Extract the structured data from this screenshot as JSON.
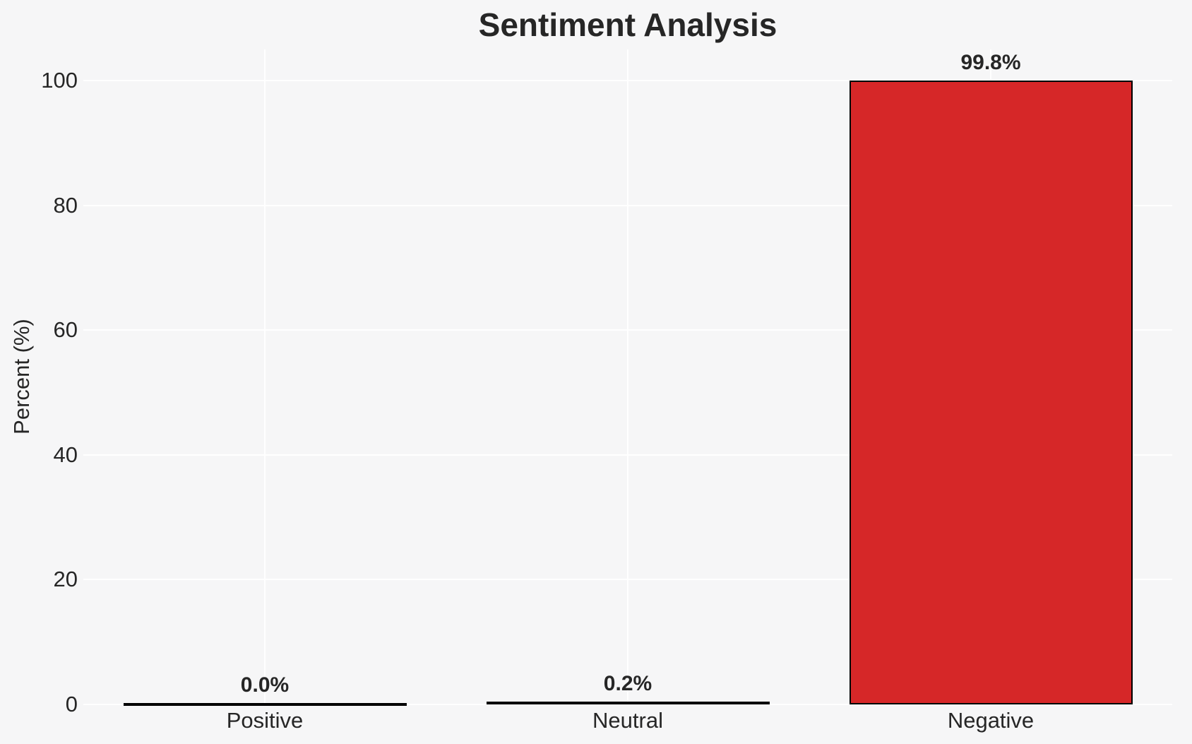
{
  "figure": {
    "background_color": "#f6f6f7",
    "gridline_color": "#ffffff",
    "text_color": "#262626"
  },
  "chart_data": {
    "type": "bar",
    "title": "Sentiment Analysis",
    "xlabel": "",
    "ylabel": "Percent (%)",
    "categories": [
      "Positive",
      "Neutral",
      "Negative"
    ],
    "values": [
      0.0,
      0.2,
      99.8
    ],
    "value_labels": [
      "0.0%",
      "0.2%",
      "99.8%"
    ],
    "yticks": [
      0,
      20,
      40,
      60,
      80,
      100
    ],
    "ylim": [
      0,
      105
    ],
    "grid": true,
    "legend": false,
    "bar_color": "#d62728",
    "bar_edge_color": "#000000"
  }
}
